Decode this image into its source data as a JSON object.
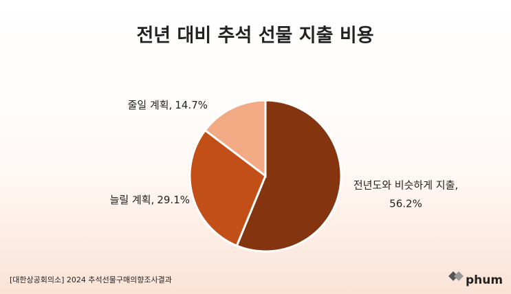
{
  "chart_data": {
    "type": "pie",
    "title": "전년 대비 추석 선물 지출 비용",
    "categories": [
      "전년도와 비슷하게 지출,",
      "늘릴 계획,",
      "줄일 계획,"
    ],
    "values": [
      56.2,
      29.1,
      14.7
    ],
    "value_labels": [
      "56.2%",
      "29.1%",
      "14.7%"
    ],
    "colors": [
      "#843510",
      "#c24f18",
      "#f1aa84"
    ],
    "source": "[대한상공회의소] 2024 추석선물구매의향조사결과",
    "logo": "phum"
  }
}
